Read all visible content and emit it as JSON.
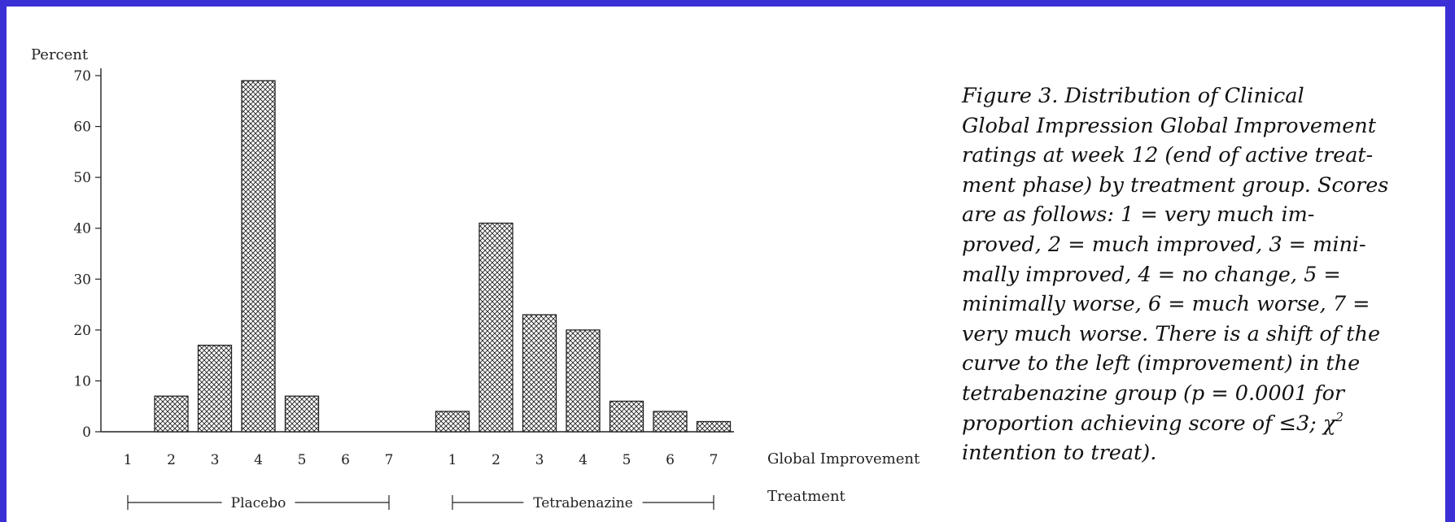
{
  "chart_data": {
    "type": "bar",
    "ylabel": "Percent",
    "xlabel": "Global Improvement",
    "group_axis_label": "Treatment",
    "ylim": [
      0,
      70
    ],
    "yticks": [
      0,
      10,
      20,
      30,
      40,
      50,
      60,
      70
    ],
    "categories": [
      "1",
      "2",
      "3",
      "4",
      "5",
      "6",
      "7"
    ],
    "grid": false,
    "bar_pattern": "cross-hatch",
    "groups": [
      {
        "name": "Placebo",
        "values": [
          0,
          7,
          17,
          69,
          7,
          0,
          0
        ]
      },
      {
        "name": "Tetrabenazine",
        "values": [
          4,
          41,
          23,
          20,
          6,
          4,
          2
        ]
      }
    ]
  },
  "caption": {
    "lines": [
      "Figure 3. Distribution of Clinical",
      "Global Impression Global Improvement",
      "ratings at week 12 (end of active treat-",
      "ment phase) by treatment group. Scores",
      "are as follows: 1 = very much im-",
      "proved, 2 = much improved, 3 = mini-",
      "mally improved, 4 = no change, 5 =",
      "minimally worse, 6 = much worse, 7 =",
      "very much worse. There is a shift of the",
      "curve to the left (improvement) in the",
      "tetrabenazine group (p = 0.0001 for",
      "proportion achieving score of ≤3; χ",
      "intention to treat)."
    ],
    "superscript": "2"
  }
}
